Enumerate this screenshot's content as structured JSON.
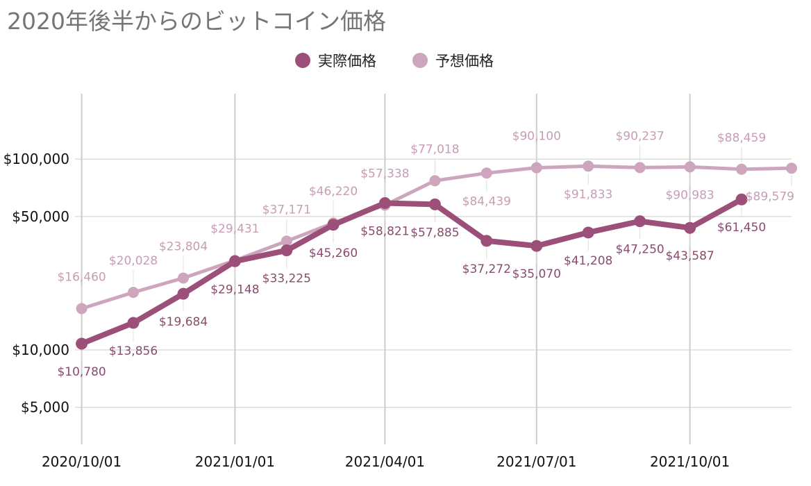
{
  "chart_data": {
    "type": "line",
    "title": "2020年後半からのビットコイン価格",
    "xlabel": "",
    "ylabel": "",
    "y_scale": "log",
    "ylim": [
      3200,
      220000
    ],
    "xlim": [
      "2020-09-27",
      "2021-12-01"
    ],
    "y_ticks": [
      {
        "value": 5000,
        "label": "$5,000"
      },
      {
        "value": 10000,
        "label": "$10,000"
      },
      {
        "value": 50000,
        "label": "$50,000"
      },
      {
        "value": 100000,
        "label": "$100,000"
      }
    ],
    "x_ticks": [
      {
        "date": "2020-10-01",
        "label": "2020/10/01"
      },
      {
        "date": "2021-01-01",
        "label": "2021/01/01"
      },
      {
        "date": "2021-04-01",
        "label": "2021/04/01"
      },
      {
        "date": "2021-07-01",
        "label": "2021/07/01"
      },
      {
        "date": "2021-10-01",
        "label": "2021/10/01"
      }
    ],
    "grid": true,
    "legend_position": "top",
    "series": [
      {
        "name": "実際価格",
        "color": "#9c4f78",
        "points": [
          {
            "date": "2020-10-01",
            "value": 10780,
            "label": "$10,780",
            "pos": "below"
          },
          {
            "date": "2020-11-01",
            "value": 13856,
            "label": "$13,856",
            "pos": "below"
          },
          {
            "date": "2020-12-01",
            "value": 19684,
            "label": "$19,684",
            "pos": "below"
          },
          {
            "date": "2021-01-01",
            "value": 29148,
            "label": "$29,148",
            "pos": "below"
          },
          {
            "date": "2021-02-01",
            "value": 33225,
            "label": "$33,225",
            "pos": "below"
          },
          {
            "date": "2021-03-01",
            "value": 45260,
            "label": "$45,260",
            "pos": "below"
          },
          {
            "date": "2021-04-01",
            "value": 58821,
            "label": "$58,821",
            "pos": "below"
          },
          {
            "date": "2021-05-01",
            "value": 57885,
            "label": "$57,885",
            "pos": "below"
          },
          {
            "date": "2021-06-01",
            "value": 37272,
            "label": "$37,272",
            "pos": "below"
          },
          {
            "date": "2021-07-01",
            "value": 35070,
            "label": "$35,070",
            "pos": "below"
          },
          {
            "date": "2021-08-01",
            "value": 41208,
            "label": "$41,208",
            "pos": "below"
          },
          {
            "date": "2021-09-01",
            "value": 47250,
            "label": "$47,250",
            "pos": "below"
          },
          {
            "date": "2021-10-01",
            "value": 43587,
            "label": "$43,587",
            "pos": "below"
          },
          {
            "date": "2021-11-01",
            "value": 61450,
            "label": "$61,450",
            "pos": "below"
          }
        ]
      },
      {
        "name": "予想価格",
        "color": "#cda6bd",
        "points": [
          {
            "date": "2020-10-01",
            "value": 16460,
            "label": "$16,460",
            "pos": "above"
          },
          {
            "date": "2020-11-01",
            "value": 20028,
            "label": "$20,028",
            "pos": "above"
          },
          {
            "date": "2020-12-01",
            "value": 23804,
            "label": "$23,804",
            "pos": "above"
          },
          {
            "date": "2021-01-01",
            "value": 29431,
            "label": "$29,431",
            "pos": "above"
          },
          {
            "date": "2021-02-01",
            "value": 37171,
            "label": "$37,171",
            "pos": "above"
          },
          {
            "date": "2021-03-01",
            "value": 46220,
            "label": "$46,220",
            "pos": "above"
          },
          {
            "date": "2021-04-01",
            "value": 57338,
            "label": "$57,338",
            "pos": "above"
          },
          {
            "date": "2021-05-01",
            "value": 77018,
            "label": "$77,018",
            "pos": "above"
          },
          {
            "date": "2021-06-01",
            "value": 84439,
            "label": "$84,439",
            "pos": "below"
          },
          {
            "date": "2021-07-01",
            "value": 90100,
            "label": "$90,100",
            "pos": "above"
          },
          {
            "date": "2021-08-01",
            "value": 91833,
            "label": "$91,833",
            "pos": "below"
          },
          {
            "date": "2021-09-01",
            "value": 90237,
            "label": "$90,237",
            "pos": "above"
          },
          {
            "date": "2021-10-01",
            "value": 90983,
            "label": "$90,983",
            "pos": "below"
          },
          {
            "date": "2021-11-01",
            "value": 88459,
            "label": "$88,459",
            "pos": "above"
          },
          {
            "date": "2021-12-01",
            "value": 89579,
            "label": "$89,579",
            "pos": "below"
          }
        ]
      }
    ]
  }
}
